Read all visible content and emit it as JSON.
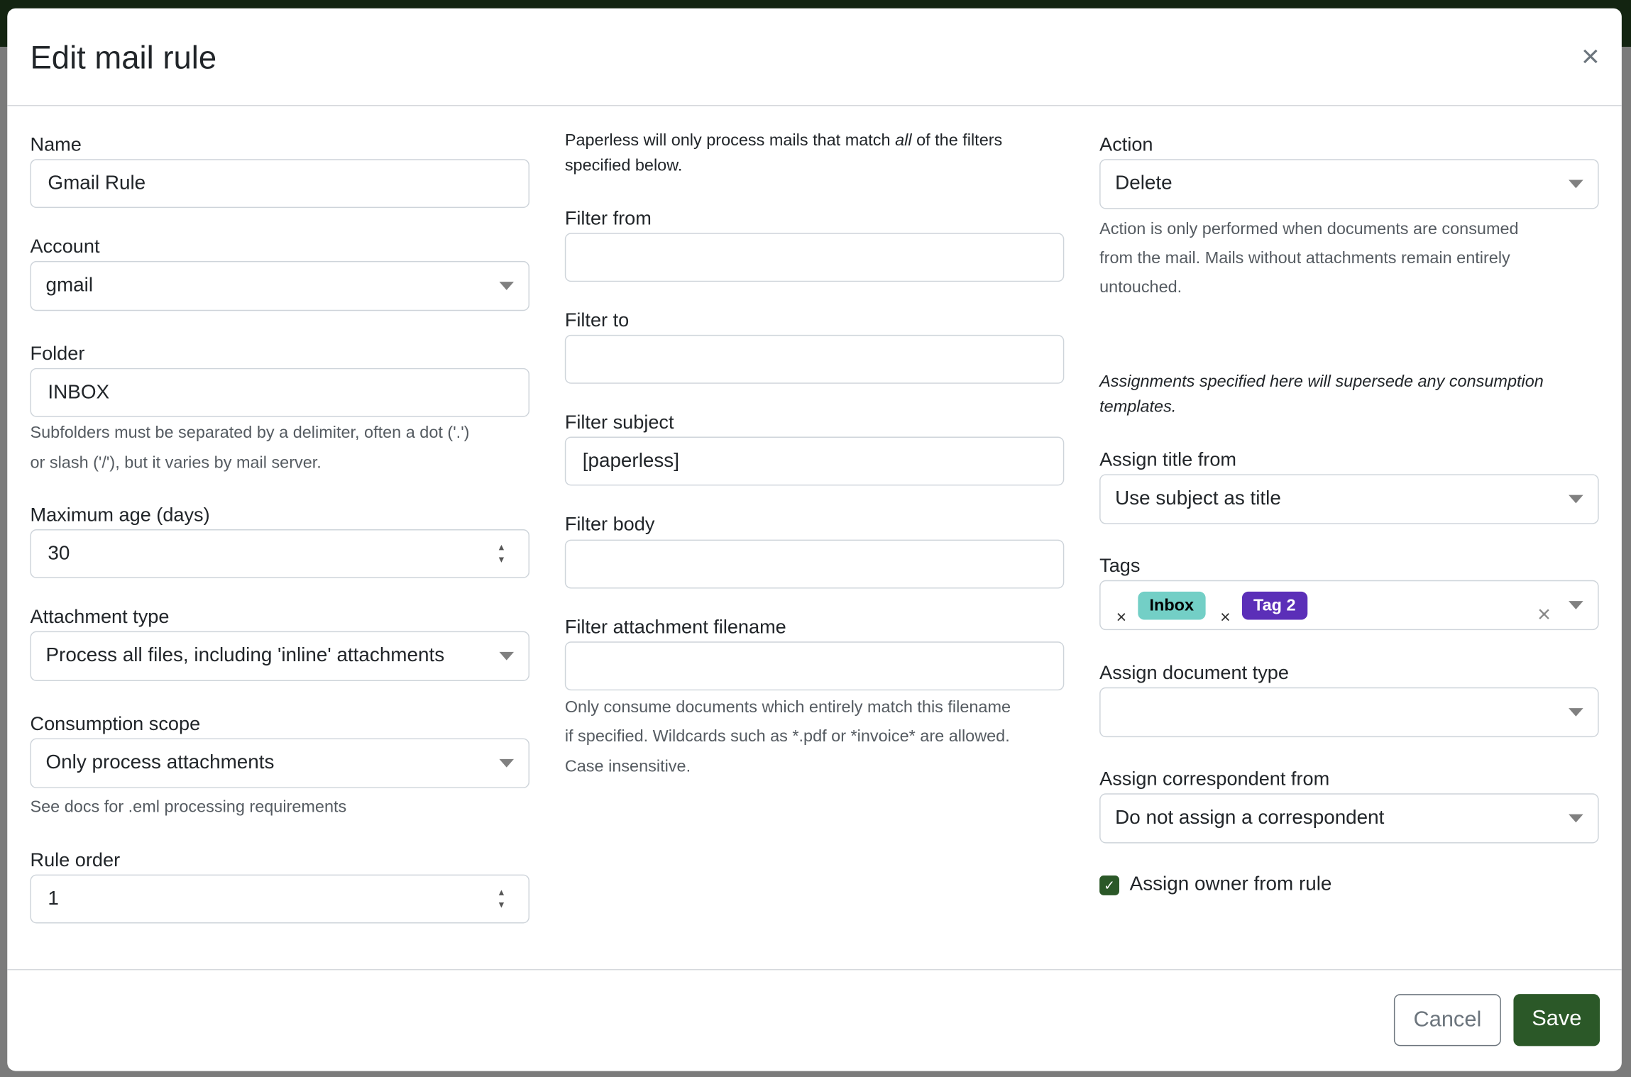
{
  "modal": {
    "title": "Edit mail rule",
    "close_icon": "close-icon"
  },
  "col1": {
    "name": {
      "label": "Name",
      "value": "Gmail Rule"
    },
    "account": {
      "label": "Account",
      "value": "gmail"
    },
    "folder": {
      "label": "Folder",
      "value": "INBOX",
      "help1": "Subfolders must be separated by a delimiter, often a dot ('.')",
      "help2": "or slash ('/'), but it varies by mail server."
    },
    "max_age": {
      "label": "Maximum age (days)",
      "value": "30"
    },
    "attachment_type": {
      "label": "Attachment type",
      "value": "Process all files, including 'inline' attachments"
    },
    "consumption_scope": {
      "label": "Consumption scope",
      "value": "Only process attachments",
      "help": "See docs for .eml processing requirements"
    },
    "rule_order": {
      "label": "Rule order",
      "value": "1"
    }
  },
  "col2": {
    "intro_pre": "Paperless will only process mails that match ",
    "intro_em": "all",
    "intro_post": " of the filters",
    "intro_line2": "specified below.",
    "filter_from": {
      "label": "Filter from",
      "value": ""
    },
    "filter_to": {
      "label": "Filter to",
      "value": ""
    },
    "filter_subject": {
      "label": "Filter subject",
      "value": "[paperless]"
    },
    "filter_body": {
      "label": "Filter body",
      "value": ""
    },
    "filter_attachment": {
      "label": "Filter attachment filename",
      "value": "",
      "help1": "Only consume documents which entirely match this filename",
      "help2": "if specified. Wildcards such as *.pdf or *invoice* are allowed.",
      "help3": "Case insensitive."
    }
  },
  "col3": {
    "action": {
      "label": "Action",
      "value": "Delete",
      "help1": "Action is only performed when documents are consumed",
      "help2": "from the mail. Mails without attachments remain entirely",
      "help3": "untouched."
    },
    "assign_note1": "Assignments specified here will supersede any consumption",
    "assign_note2": "templates.",
    "assign_title": {
      "label": "Assign title from",
      "value": "Use subject as title"
    },
    "tags": {
      "label": "Tags",
      "items": [
        {
          "label": "Inbox",
          "bg": "#73cfc6",
          "fg": "#000000"
        },
        {
          "label": "Tag 2",
          "bg": "#5b2fb8",
          "fg": "#ffffff"
        }
      ]
    },
    "doc_type": {
      "label": "Assign document type",
      "value": ""
    },
    "correspondent": {
      "label": "Assign correspondent from",
      "value": "Do not assign a correspondent"
    },
    "owner": {
      "label": "Assign owner from rule",
      "checked": true
    }
  },
  "footer": {
    "cancel": "Cancel",
    "save": "Save"
  },
  "colors": {
    "primary": "#2b5828",
    "topbar": "#132411"
  }
}
